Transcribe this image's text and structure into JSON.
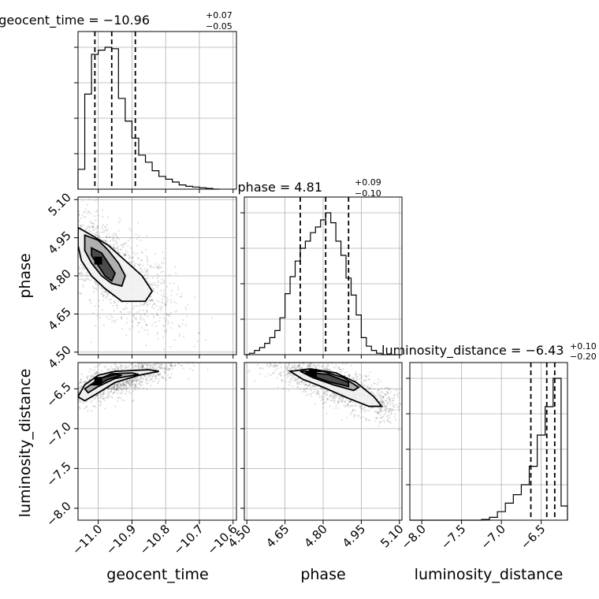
{
  "chart_data": {
    "type": "corner",
    "parameters": [
      {
        "name": "geocent_time",
        "median": -10.96,
        "plus": 0.07,
        "minus": 0.05,
        "title_main": "geocent_time = −10.96",
        "title_sup": "+0.07",
        "title_sub": "−0.05",
        "xlabel": "geocent_time",
        "range": [
          -11.06,
          -10.59
        ],
        "ticks": [
          -11.0,
          -10.9,
          -10.8,
          -10.7,
          -10.6
        ],
        "tick_labels": [
          "−11.0",
          "−10.9",
          "−10.8",
          "−10.7",
          "−10.6"
        ],
        "quantiles": [
          -11.01,
          -10.96,
          -10.89
        ],
        "hist_bins": [
          -11.06,
          -11.04,
          -11.02,
          -11.0,
          -10.98,
          -10.96,
          -10.94,
          -10.92,
          -10.9,
          -10.88,
          -10.86,
          -10.84,
          -10.82,
          -10.8,
          -10.78,
          -10.76,
          -10.74,
          -10.72,
          -10.7,
          -10.68,
          -10.66,
          -10.64
        ],
        "hist_values": [
          0.14,
          0.67,
          0.95,
          0.98,
          1.0,
          0.99,
          0.64,
          0.48,
          0.36,
          0.24,
          0.19,
          0.13,
          0.09,
          0.07,
          0.05,
          0.03,
          0.02,
          0.015,
          0.01,
          0.005,
          0.0
        ]
      },
      {
        "name": "phase",
        "median": 4.81,
        "plus": 0.09,
        "minus": 0.1,
        "title_main": "phase = 4.81",
        "title_sup": "+0.09",
        "title_sub": "−0.10",
        "xlabel": "phase",
        "ylabel": "phase",
        "range": [
          4.49,
          5.11
        ],
        "ticks": [
          4.5,
          4.65,
          4.8,
          4.95,
          5.1
        ],
        "tick_labels": [
          "4.50",
          "4.65",
          "4.80",
          "4.95",
          "5.10"
        ],
        "quantiles": [
          4.71,
          4.81,
          4.9
        ],
        "hist_bins": [
          4.49,
          4.51,
          4.53,
          4.55,
          4.57,
          4.59,
          4.61,
          4.63,
          4.65,
          4.67,
          4.69,
          4.71,
          4.73,
          4.75,
          4.77,
          4.79,
          4.81,
          4.83,
          4.85,
          4.87,
          4.89,
          4.91,
          4.93,
          4.95,
          4.97,
          4.99,
          5.01,
          5.03,
          5.05,
          5.07,
          5.09,
          5.11
        ],
        "hist_values": [
          0.0,
          0.01,
          0.03,
          0.05,
          0.08,
          0.12,
          0.17,
          0.26,
          0.43,
          0.55,
          0.66,
          0.75,
          0.8,
          0.86,
          0.9,
          0.95,
          1.0,
          0.93,
          0.8,
          0.7,
          0.54,
          0.42,
          0.28,
          0.12,
          0.06,
          0.03,
          0.01,
          0.0,
          0.0,
          0.0,
          0.0
        ]
      },
      {
        "name": "luminosity_distance",
        "median": -6.43,
        "plus": 0.1,
        "minus": 0.2,
        "title_main": "luminosity_distance = −6.43",
        "title_sup": "+0.10",
        "title_sub": "−0.20",
        "xlabel": "luminosity_distance",
        "ylabel": "luminosity_distance",
        "range": [
          -8.15,
          -6.17
        ],
        "ticks": [
          -8.0,
          -7.5,
          -7.0,
          -6.5
        ],
        "tick_labels": [
          "−8.0",
          "−7.5",
          "−7.0",
          "−6.5"
        ],
        "quantiles": [
          -6.63,
          -6.43,
          -6.33
        ],
        "hist_bins": [
          -8.15,
          -8.05,
          -7.95,
          -7.85,
          -7.75,
          -7.65,
          -7.55,
          -7.45,
          -7.35,
          -7.25,
          -7.15,
          -7.05,
          -6.95,
          -6.85,
          -6.75,
          -6.65,
          -6.55,
          -6.45,
          -6.35,
          -6.25,
          -6.17
        ],
        "hist_values": [
          0.0,
          0.0,
          0.0,
          0.0,
          0.0,
          0.0,
          0.0,
          0.0,
          0.0,
          0.005,
          0.02,
          0.06,
          0.12,
          0.18,
          0.25,
          0.38,
          0.6,
          0.8,
          1.0,
          0.1
        ]
      }
    ],
    "pairs": [
      {
        "x": "geocent_time",
        "y": "phase",
        "correlation": "negative",
        "density_peak": [
          -11.0,
          4.86
        ],
        "contours": [
          [
            [
              -11.06,
              4.99
            ],
            [
              -11.02,
              4.96
            ],
            [
              -10.97,
              4.92
            ],
            [
              -10.92,
              4.86
            ],
            [
              -10.87,
              4.8
            ],
            [
              -10.84,
              4.74
            ],
            [
              -10.86,
              4.7
            ],
            [
              -10.93,
              4.7
            ],
            [
              -10.98,
              4.75
            ],
            [
              -11.02,
              4.8
            ],
            [
              -11.05,
              4.86
            ],
            [
              -11.06,
              4.92
            ]
          ],
          [
            [
              -11.04,
              4.96
            ],
            [
              -11.0,
              4.94
            ],
            [
              -10.97,
              4.9
            ],
            [
              -10.94,
              4.85
            ],
            [
              -10.92,
              4.8
            ],
            [
              -10.93,
              4.76
            ],
            [
              -10.96,
              4.77
            ],
            [
              -10.99,
              4.8
            ],
            [
              -11.02,
              4.85
            ],
            [
              -11.04,
              4.9
            ]
          ],
          [
            [
              -11.02,
              4.91
            ],
            [
              -10.99,
              4.89
            ],
            [
              -10.97,
              4.85
            ],
            [
              -10.95,
              4.81
            ],
            [
              -10.96,
              4.78
            ],
            [
              -10.98,
              4.8
            ],
            [
              -11.0,
              4.84
            ],
            [
              -11.02,
              4.88
            ]
          ]
        ]
      },
      {
        "x": "geocent_time",
        "y": "luminosity_distance",
        "correlation": "positive",
        "density_peak": [
          -11.0,
          -6.4
        ],
        "contours": [
          [
            [
              -11.06,
              -6.6
            ],
            [
              -11.04,
              -6.45
            ],
            [
              -11.0,
              -6.33
            ],
            [
              -10.95,
              -6.28
            ],
            [
              -10.85,
              -6.26
            ],
            [
              -10.82,
              -6.28
            ],
            [
              -10.88,
              -6.33
            ],
            [
              -10.95,
              -6.42
            ],
            [
              -11.0,
              -6.55
            ],
            [
              -11.04,
              -6.65
            ]
          ],
          [
            [
              -11.04,
              -6.5
            ],
            [
              -11.0,
              -6.38
            ],
            [
              -10.96,
              -6.31
            ],
            [
              -10.9,
              -6.3
            ],
            [
              -10.88,
              -6.32
            ],
            [
              -10.95,
              -6.37
            ],
            [
              -11.0,
              -6.47
            ],
            [
              -11.03,
              -6.55
            ]
          ],
          [
            [
              -11.02,
              -6.45
            ],
            [
              -10.99,
              -6.36
            ],
            [
              -10.95,
              -6.32
            ],
            [
              -10.93,
              -6.33
            ],
            [
              -10.97,
              -6.38
            ],
            [
              -11.0,
              -6.45
            ]
          ]
        ]
      },
      {
        "x": "phase",
        "y": "luminosity_distance",
        "correlation": "negative",
        "density_peak": [
          4.76,
          -6.3
        ],
        "contours": [
          [
            [
              4.67,
              -6.28
            ],
            [
              4.75,
              -6.25
            ],
            [
              4.85,
              -6.3
            ],
            [
              4.93,
              -6.42
            ],
            [
              5.0,
              -6.6
            ],
            [
              5.03,
              -6.72
            ],
            [
              4.98,
              -6.72
            ],
            [
              4.9,
              -6.62
            ],
            [
              4.8,
              -6.48
            ],
            [
              4.72,
              -6.38
            ]
          ],
          [
            [
              4.71,
              -6.28
            ],
            [
              4.8,
              -6.28
            ],
            [
              4.88,
              -6.36
            ],
            [
              4.94,
              -6.48
            ],
            [
              4.92,
              -6.52
            ],
            [
              4.84,
              -6.45
            ],
            [
              4.76,
              -6.36
            ]
          ],
          [
            [
              4.73,
              -6.29
            ],
            [
              4.82,
              -6.32
            ],
            [
              4.9,
              -6.42
            ],
            [
              4.9,
              -6.47
            ],
            [
              4.82,
              -6.41
            ],
            [
              4.75,
              -6.33
            ]
          ]
        ]
      }
    ]
  }
}
